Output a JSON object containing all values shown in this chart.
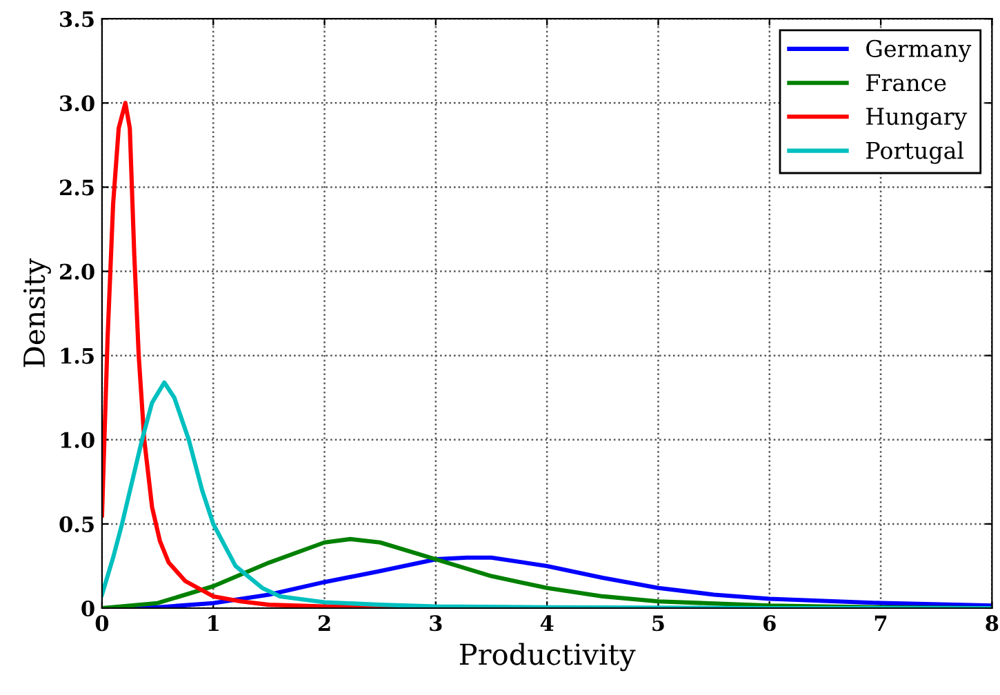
{
  "chart_data": {
    "type": "line",
    "xlabel": "Productivity",
    "ylabel": "Density",
    "xlim": [
      0,
      8
    ],
    "ylim": [
      0,
      3.5
    ],
    "xticks": [
      0,
      1,
      2,
      3,
      4,
      5,
      6,
      7,
      8
    ],
    "yticks": [
      {
        "value": 0,
        "label": "0"
      },
      {
        "value": 0.5,
        "label": "0.5"
      },
      {
        "value": 1,
        "label": "1.0"
      },
      {
        "value": 1.5,
        "label": "1.5"
      },
      {
        "value": 2,
        "label": "2.0"
      },
      {
        "value": 2.5,
        "label": "2.5"
      },
      {
        "value": 3,
        "label": "3.0"
      },
      {
        "value": 3.5,
        "label": "3.5"
      }
    ],
    "grid": true,
    "legend": "top right",
    "line_style": "solid",
    "marker": "none",
    "series": [
      {
        "name": "Germany",
        "color": "#0000ff",
        "x": [
          0,
          0.5,
          1,
          1.5,
          2,
          2.5,
          3,
          3.28,
          3.5,
          4,
          4.5,
          5,
          5.5,
          6,
          7,
          8
        ],
        "values": [
          0,
          0.005,
          0.03,
          0.08,
          0.155,
          0.22,
          0.29,
          0.3,
          0.3,
          0.25,
          0.18,
          0.12,
          0.08,
          0.055,
          0.03,
          0.015
        ]
      },
      {
        "name": "France",
        "color": "#008000",
        "x": [
          0,
          0.5,
          1,
          1.5,
          2,
          2.23,
          2.5,
          3,
          3.5,
          4,
          4.5,
          5,
          6,
          7,
          8
        ],
        "values": [
          0,
          0.03,
          0.13,
          0.27,
          0.39,
          0.41,
          0.39,
          0.29,
          0.19,
          0.12,
          0.07,
          0.04,
          0.015,
          0.005,
          0
        ]
      },
      {
        "name": "Hungary",
        "color": "#ff0000",
        "x": [
          0,
          0.05,
          0.1,
          0.15,
          0.21,
          0.25,
          0.29,
          0.33,
          0.38,
          0.45,
          0.52,
          0.6,
          0.75,
          1,
          1.25,
          1.5,
          2,
          3,
          8
        ],
        "values": [
          0.55,
          1.6,
          2.4,
          2.85,
          3.0,
          2.85,
          2.1,
          1.5,
          1.0,
          0.6,
          0.4,
          0.27,
          0.16,
          0.07,
          0.04,
          0.02,
          0.01,
          0,
          0
        ]
      },
      {
        "name": "Portugal",
        "color": "#00bfbf",
        "x": [
          0,
          0.1,
          0.18,
          0.27,
          0.36,
          0.45,
          0.56,
          0.65,
          0.78,
          0.9,
          1,
          1.2,
          1.44,
          1.6,
          2,
          2.5,
          3,
          4,
          6,
          8
        ],
        "values": [
          0.08,
          0.3,
          0.5,
          0.75,
          1.0,
          1.22,
          1.34,
          1.25,
          1.0,
          0.7,
          0.5,
          0.25,
          0.12,
          0.07,
          0.035,
          0.02,
          0.01,
          0.005,
          0,
          0
        ]
      }
    ]
  }
}
